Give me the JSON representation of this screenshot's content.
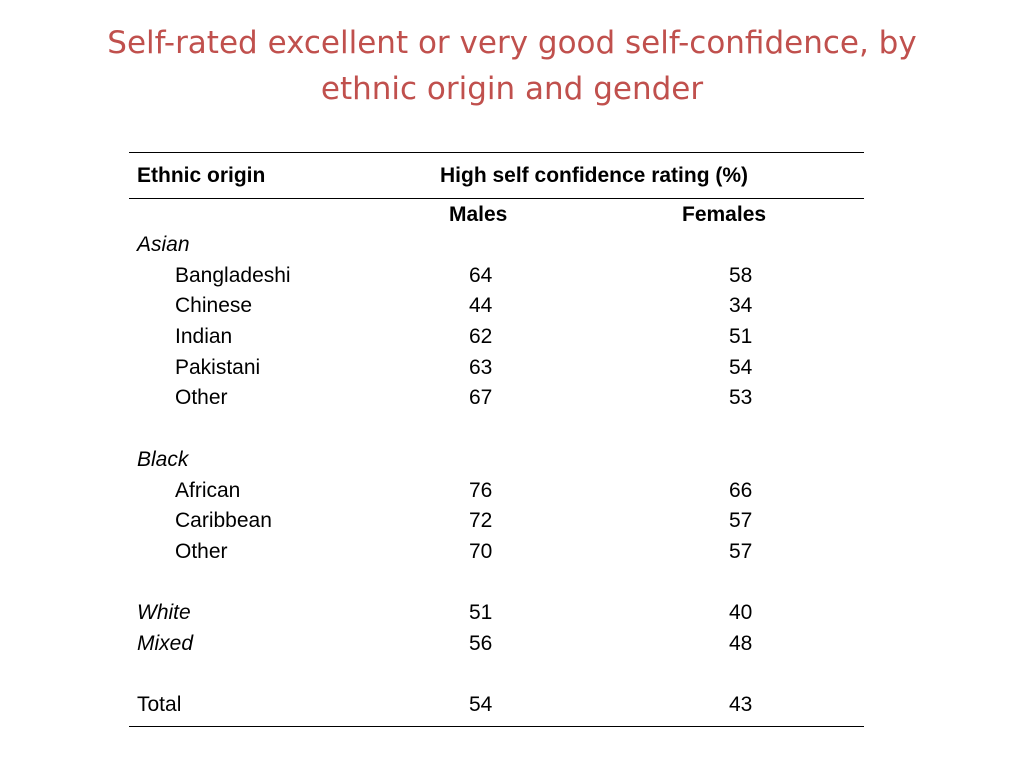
{
  "slide": {
    "title": "Self-rated excellent or very good self-confidence, by ethnic origin and gender"
  },
  "table": {
    "header_ethnic": "Ethnic origin",
    "header_rating": "High self confidence rating (%)",
    "sub_males": "Males",
    "sub_females": "Females",
    "rows": [
      {
        "label": "Asian",
        "males": "",
        "females": "",
        "kind": "group"
      },
      {
        "label": "Bangladeshi",
        "males": "64",
        "females": "58",
        "kind": "indent"
      },
      {
        "label": "Chinese",
        "males": "44",
        "females": "34",
        "kind": "indent"
      },
      {
        "label": "Indian",
        "males": "62",
        "females": "51",
        "kind": "indent"
      },
      {
        "label": "Pakistani",
        "males": "63",
        "females": "54",
        "kind": "indent"
      },
      {
        "label": "Other",
        "males": "67",
        "females": "53",
        "kind": "indent"
      },
      {
        "label": "",
        "males": "",
        "females": "",
        "kind": "blank"
      },
      {
        "label": "Black",
        "males": "",
        "females": "",
        "kind": "group"
      },
      {
        "label": "African",
        "males": "76",
        "females": "66",
        "kind": "indent"
      },
      {
        "label": "Caribbean",
        "males": "72",
        "females": "57",
        "kind": "indent"
      },
      {
        "label": "Other",
        "males": "70",
        "females": "57",
        "kind": "indent"
      },
      {
        "label": "",
        "males": "",
        "females": "",
        "kind": "blank"
      },
      {
        "label": "White",
        "males": "51",
        "females": "40",
        "kind": "group"
      },
      {
        "label": "Mixed",
        "males": "56",
        "females": "48",
        "kind": "group"
      },
      {
        "label": "",
        "males": "",
        "females": "",
        "kind": "blank"
      },
      {
        "label": "Total",
        "males": "54",
        "females": "43",
        "kind": "plain"
      }
    ]
  },
  "colors": {
    "title": "#c0504d",
    "text": "#000000",
    "background": "#ffffff"
  }
}
